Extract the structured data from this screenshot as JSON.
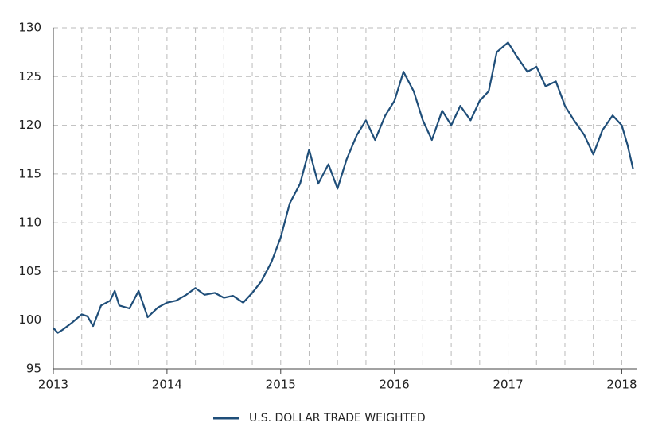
{
  "chart_data": {
    "type": "line",
    "x": [
      2013.0,
      2013.04,
      2013.08,
      2013.17,
      2013.25,
      2013.3,
      2013.35,
      2013.42,
      2013.5,
      2013.54,
      2013.58,
      2013.67,
      2013.75,
      2013.83,
      2013.92,
      2014.0,
      2014.08,
      2014.17,
      2014.25,
      2014.33,
      2014.42,
      2014.5,
      2014.58,
      2014.67,
      2014.75,
      2014.83,
      2014.92,
      2015.0,
      2015.08,
      2015.17,
      2015.25,
      2015.33,
      2015.42,
      2015.5,
      2015.58,
      2015.67,
      2015.75,
      2015.83,
      2015.92,
      2016.0,
      2016.08,
      2016.17,
      2016.25,
      2016.33,
      2016.42,
      2016.5,
      2016.58,
      2016.67,
      2016.75,
      2016.83,
      2016.9,
      2017.0,
      2017.08,
      2017.17,
      2017.25,
      2017.33,
      2017.42,
      2017.5,
      2017.58,
      2017.67,
      2017.75,
      2017.83,
      2017.92,
      2018.0,
      2018.05,
      2018.08,
      2018.1
    ],
    "series": [
      {
        "name": "U.S. DOLLAR TRADE WEIGHTED",
        "color": "#1f4e79",
        "values": [
          99.2,
          98.7,
          99.0,
          99.8,
          100.6,
          100.4,
          99.4,
          101.5,
          102.0,
          103.0,
          101.5,
          101.2,
          103.0,
          100.3,
          101.3,
          101.8,
          102.0,
          102.6,
          103.3,
          102.6,
          102.8,
          102.3,
          102.5,
          101.8,
          102.8,
          104.0,
          106.0,
          108.5,
          112.0,
          114.0,
          117.5,
          114.0,
          116.0,
          113.5,
          116.5,
          119.0,
          120.5,
          118.5,
          121.0,
          122.5,
          125.5,
          123.5,
          120.5,
          118.5,
          121.5,
          120.0,
          122.0,
          120.5,
          122.5,
          123.5,
          127.5,
          128.5,
          127.0,
          125.5,
          126.0,
          124.0,
          124.5,
          122.0,
          120.5,
          119.0,
          117.0,
          119.5,
          121.0,
          120.0,
          118.0,
          116.5,
          115.5
        ]
      }
    ],
    "xlim": [
      2013,
      2018.13
    ],
    "xticks": [
      2013,
      2014,
      2015,
      2016,
      2017,
      2018
    ],
    "xminorticks": [
      2013.25,
      2013.5,
      2013.75,
      2014.25,
      2014.5,
      2014.75,
      2015.25,
      2015.5,
      2015.75,
      2016.25,
      2016.5,
      2016.75,
      2017.25,
      2017.5,
      2017.75
    ],
    "ylim": [
      95,
      130
    ],
    "yticks": [
      95,
      100,
      105,
      110,
      115,
      120,
      125,
      130
    ],
    "grid": true,
    "legend": "bottom"
  }
}
